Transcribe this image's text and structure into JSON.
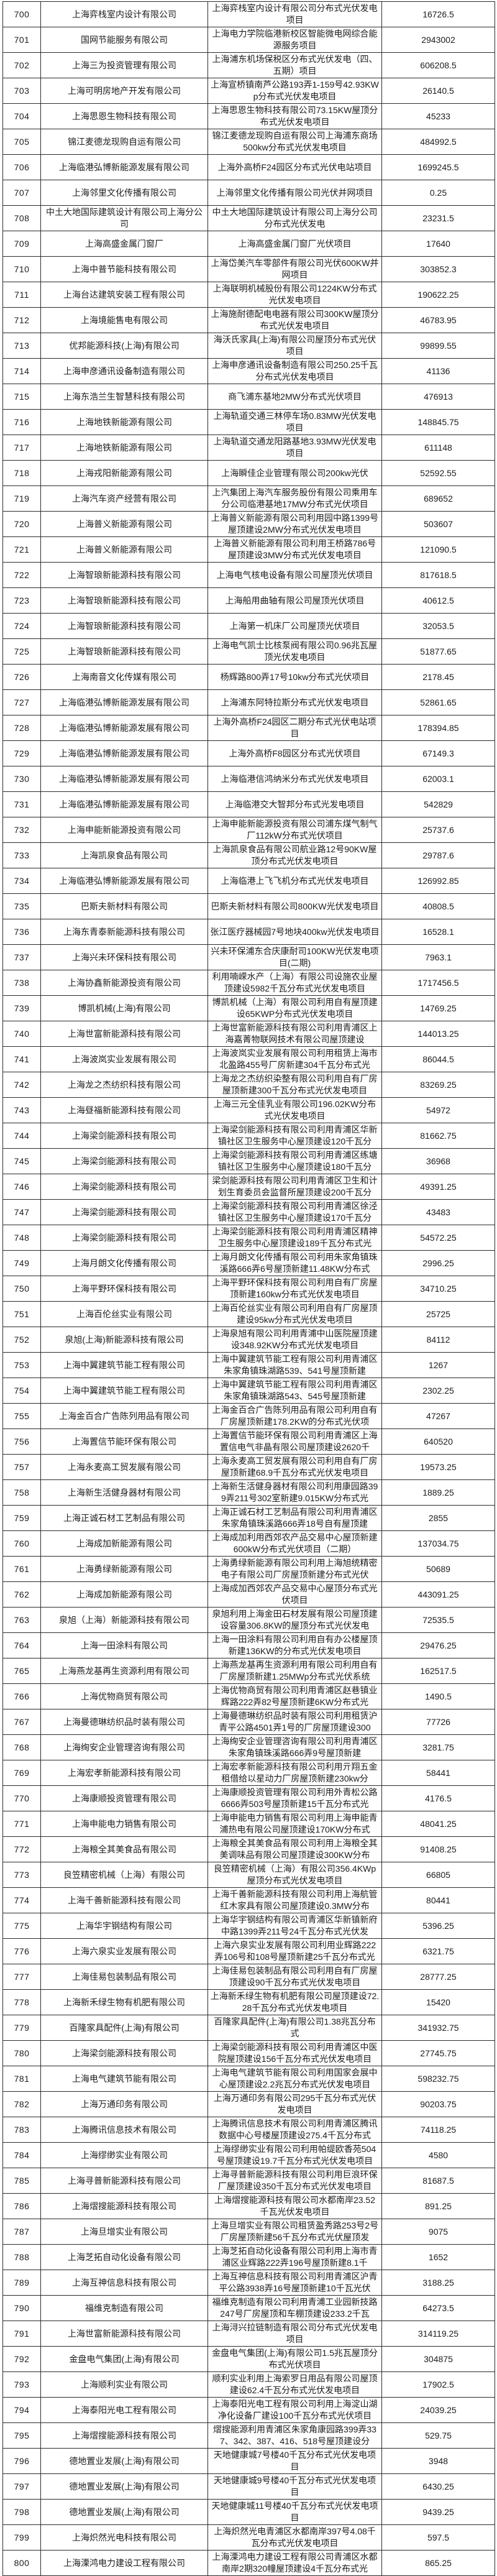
{
  "table": {
    "description": "分布式光伏发电项目补贴清单（第700-800行）",
    "rows": [
      {
        "no": "700",
        "company": "上海弈栈室内设计有限公司",
        "project": "上海弈栈室内设计有限公司分布式光伏发电项目",
        "value": "16726.5"
      },
      {
        "no": "701",
        "company": "国网节能服务有限公司",
        "project": "上海电力学院临港新校区智能微电网综合能源服务项目",
        "value": "2943002"
      },
      {
        "no": "702",
        "company": "上海三为投资管理有限公司",
        "project": "上海浦东机场保税区分布式光伏发电（四、五期）项目",
        "value": "606208.5"
      },
      {
        "no": "703",
        "company": "上海可明房地产开发有限公司",
        "project": "上海宣桥镇南芦公路193弄1-159号42.93KWp分布式光伏发电项目",
        "value": "26140.5"
      },
      {
        "no": "704",
        "company": "上海思恩生物科技有限公司",
        "project": "上海思恩生物科技有限公司73.15KW屋顶分布式光伏发电项目",
        "value": "45233"
      },
      {
        "no": "705",
        "company": "锦江麦德龙现购自运有限公司",
        "project": "锦江麦德龙现购自运有限公司上海浦东商场500kw分布式光伏发电项目",
        "value": "484992.5"
      },
      {
        "no": "706",
        "company": "上海临港弘博新能源发展有限公司",
        "project": "上海外高桥F24园区分布式光伏电站项目",
        "value": "1699245.5"
      },
      {
        "no": "707",
        "company": "上海邻里文化传播有限公司",
        "project": "上海邻里文化传播有限公司光伏并网项目",
        "value": "0.25"
      },
      {
        "no": "708",
        "company": "中土大地国际建筑设计有限公司上海分公司",
        "project": "中土大地国际建筑设计有限公司上海分公司分布式光伏发电",
        "value": "23231.5"
      },
      {
        "no": "709",
        "company": "上海高盛金属门窗厂",
        "project": "上海高盛金属门窗厂光伏项目",
        "value": "17640"
      },
      {
        "no": "710",
        "company": "上海中普节能科技有限公司",
        "project": "上海岱美汽车零部件有限公司光伏600KW并网项目",
        "value": "303852.3"
      },
      {
        "no": "711",
        "company": "上海台达建筑安装工程有限公司",
        "project": "上海联明机械股份有限公司1224KW分布式光伏发电项目",
        "value": "190622.25"
      },
      {
        "no": "712",
        "company": "上海境能售电有限公司",
        "project": "上海施耐德配电电器有限公司300KW屋顶分布式光伏发电项目",
        "value": "46783.95"
      },
      {
        "no": "713",
        "company": "优邦能源科技(上海)有限公司",
        "project": "海沃氏家具(上海)有限公司屋顶分布式光伏项目",
        "value": "99899.55"
      },
      {
        "no": "714",
        "company": "上海申彦通讯设备制造有限公司",
        "project": "上海申彦通讯设备制造有限公司250.25千瓦分布式光伏发电项目",
        "value": "41136"
      },
      {
        "no": "715",
        "company": "上海东浩兰生智慧科技有限公司",
        "project": "商飞浦东基地2MW分布式光伏项目",
        "value": "476913"
      },
      {
        "no": "716",
        "company": "上海地铁新能源有限公司",
        "project": "上海轨道交通三林停车场0.83MW光伏发电项目",
        "value": "148845.75"
      },
      {
        "no": "717",
        "company": "上海地铁新能源有限公司",
        "project": "上海轨道交通龙阳路基地3.93MW光伏发电项目",
        "value": "611148"
      },
      {
        "no": "718",
        "company": "上海戎阳新能源有限公司",
        "project": "上海瞬佳企业管理有限公司200kw光伏",
        "value": "52592.55"
      },
      {
        "no": "719",
        "company": "上海汽车资产经营有限公司",
        "project": "上汽集团上海汽车服务股份有限公司乘用车分公司临港基地17MW分布式光伏项目",
        "value": "689652"
      },
      {
        "no": "720",
        "company": "上海普义新能源有限公司",
        "project": "上海普义新能源有限公司利用园中路1399号屋顶建设2MW分布式光伏发电项目",
        "value": "503607"
      },
      {
        "no": "721",
        "company": "上海普义新能源有限公司",
        "project": "上海普义新能源有限公司利用王桥路786号屋顶建设3MW分布式光伏发电项目",
        "value": "121090.5"
      },
      {
        "no": "722",
        "company": "上海智琅新能源科技有限公司",
        "project": "上海电气核电设备有限公司屋顶光伏项目",
        "value": "817618.5"
      },
      {
        "no": "723",
        "company": "上海智琅新能源科技有限公司",
        "project": "上海船用曲轴有限公司屋顶光伏项目",
        "value": "40612.5"
      },
      {
        "no": "724",
        "company": "上海智琅新能源科技有限公司",
        "project": "上海第一机床厂公司屋顶光伏项目",
        "value": "32053.5"
      },
      {
        "no": "725",
        "company": "上海智琅新能源科技有限公司",
        "project": "上海电气凯士比核泵阀有限公司0.96兆瓦屋顶光伏发电项目",
        "value": "51877.65"
      },
      {
        "no": "726",
        "company": "上海南音文化传媒有限公司",
        "project": "杨辉路800弄17号10kw分布式光伏项目",
        "value": "2178.45"
      },
      {
        "no": "727",
        "company": "上海临港弘博新能源发展有限公司",
        "project": "上海浦东阿特拉斯分布式光伏发电项目",
        "value": "52861.65"
      },
      {
        "no": "728",
        "company": "上海临港弘博新能源发展有限公司",
        "project": "上海外高桥F24园区二期分布式光伏电站项目",
        "value": "178394.85"
      },
      {
        "no": "729",
        "company": "上海临港弘博新能源发展有限公司",
        "project": "上海外高桥F8园区分布式光伏项目",
        "value": "67149.3"
      },
      {
        "no": "730",
        "company": "上海临港弘博新能源发展有限公司",
        "project": "上海临港信鸿纳米分布式光伏发电项目",
        "value": "62003.1"
      },
      {
        "no": "731",
        "company": "上海临港弘博新能源发展有限公司",
        "project": "上海临港交大智邦分布式光发电项目",
        "value": "542829"
      },
      {
        "no": "732",
        "company": "上海申能新能源投资有限公司",
        "project": "上海申能新能源投资有限公司浦东煤气制气厂112kW分布式光伏项目",
        "value": "25737.6"
      },
      {
        "no": "733",
        "company": "上海凯泉食品有限公司",
        "project": "上海凯泉食品有限公司航业路12号90KW屋顶分布式光伏发电项目",
        "value": "29787.6"
      },
      {
        "no": "734",
        "company": "上海临港弘博新能源发展有限公司",
        "project": "上海临港上飞飞机分布式光伏发电项目",
        "value": "126992.85"
      },
      {
        "no": "735",
        "company": "巴斯夫新材料有限公司",
        "project": "巴斯夫新材料有限公司800KW光伏发电项目",
        "value": "40808.5"
      },
      {
        "no": "736",
        "company": "上海东青泰新能源科技有限公司",
        "project": "张江医疗器械园7号地块400kw光伏发电项目",
        "value": "16528.1"
      },
      {
        "no": "737",
        "company": "上海兴未环保科技有限公司",
        "project": "兴未环保浦东合庆康耐司100KW光伏发电项目(二期)",
        "value": "7963.1"
      },
      {
        "no": "738",
        "company": "上海协鑫新能源投资有限公司",
        "project": "利用喃嵘水产（上海）有限公司设施农业屋顶建设5982千瓦分布式光伏发电项目",
        "value": "1717456.5"
      },
      {
        "no": "739",
        "company": "博凯机械(上海)有限公司",
        "project": "博凯机械（上海）有限公司利用自有屋顶建设65KWP分布式光伏发电项目",
        "value": "14769.25"
      },
      {
        "no": "740",
        "company": "上海世富新能源科技有限公司",
        "project": "上海世富新能源科技有限公司利用青浦区上海嘉菁物联网技术有限公司屋顶建设",
        "value": "144013.25"
      },
      {
        "no": "741",
        "company": "上海波岚实业发展有限公司",
        "project": "上海波岚实业发展有限公司利用租赁上海市北盈路455号厂房新建304千瓦分布式光",
        "value": "86044.5"
      },
      {
        "no": "742",
        "company": "上海龙之杰纺织科技有限公司",
        "project": "上海龙之杰纺织染整有限公司利用自有厂房屋顶新建300千瓦分布式光伏发电项目",
        "value": "83269.25"
      },
      {
        "no": "743",
        "company": "上海昼福新能源科技有限公司",
        "project": "上海三元全佳乳业有限公司196.02KW分布式光伏发电项目",
        "value": "54972"
      },
      {
        "no": "744",
        "company": "上海梁剑能源科技有限公司",
        "project": "上海梁剑能源科技有限公司利用青浦区华新镇社区卫生服务中心屋顶建设120千瓦分",
        "value": "81662.75"
      },
      {
        "no": "745",
        "company": "上海梁剑能源科技有限公司",
        "project": "上海梁剑能源科技有限公司利用青浦区练塘镇社区卫生服务中心屋顶建设180千瓦分",
        "value": "36968"
      },
      {
        "no": "746",
        "company": "上海梁剑能源科技有限公司",
        "project": "梁剑能源科技有限公司利用青浦区卫生和计划生育委员会监督所屋顶建设200千瓦分",
        "value": "49391.25"
      },
      {
        "no": "747",
        "company": "上海梁剑能源科技有限公司",
        "project": "上海梁剑能源科技有限公司利用青浦区徐泾镇社区卫生服务中心屋顶建设170千瓦分",
        "value": "43483"
      },
      {
        "no": "748",
        "company": "上海梁剑能源科技有限公司",
        "project": "上海梁剑能源科技有限公司利用青浦区精神卫生服务中心屋顶建设189千瓦分布式光",
        "value": "54572.25"
      },
      {
        "no": "749",
        "company": "上海月朗文化传播有限公司",
        "project": "上海月朗文化传播有限公司利用朱家角镇珠溪路666弄6号屋顶新建11.48KW分布式",
        "value": "2996.25"
      },
      {
        "no": "750",
        "company": "上海平野环保科技有限公司",
        "project": "上海平野环保科技有限公司利用自有厂房屋顶新建160kw分布式光伏发电项目",
        "value": "34710.25"
      },
      {
        "no": "751",
        "company": "上海百伦丝实业有限公司",
        "project": "上海百伦丝实业有限公司利用自有厂房屋顶建设95kw分布式光伏发电项目",
        "value": "25725"
      },
      {
        "no": "752",
        "company": "泉旭(上海)新能源科技有限公司",
        "project": "上海泉旭有限公司利用青浦中山医院屋顶建设348.92KW分布式光伏发电项目",
        "value": "84112"
      },
      {
        "no": "753",
        "company": "上海中翼建筑节能工程有限公司",
        "project": "上海中翼建筑节能工程有限公司利用青浦区朱家角镇珠湖路539、541号屋顶新建",
        "value": "1267"
      },
      {
        "no": "754",
        "company": "上海中翼建筑节能工程有限公司",
        "project": "上海中翼建筑节能工程有限公司利用青浦区朱家角镇珠湖路543、545号屋顶新建",
        "value": "2302.25"
      },
      {
        "no": "755",
        "company": "上海金百合广告陈列用品有限公司",
        "project": "上海金百合广告陈列用品有限公司利用自有厂房屋顶新建178.2KW的分布式光伏项",
        "value": "47267"
      },
      {
        "no": "756",
        "company": "上海置信节能环保有限公司",
        "project": "上海置信节能环保有限公司利用青浦区上海置信电气非晶有限公司屋顶建设2620千",
        "value": "640520"
      },
      {
        "no": "757",
        "company": "上海永麦高工贸发展有限公司",
        "project": "上海永麦高工贸发展有限公司利用自有厂房屋顶新建68.9千瓦分布式光伏发电项目",
        "value": "19573.25"
      },
      {
        "no": "758",
        "company": "上海新生活健身器材有限公司",
        "project": "上海新生活健身器材有限公司利用康园路399弄211号302室新建9.015KW分布式光",
        "value": "1889.25"
      },
      {
        "no": "759",
        "company": "上海正诚石材工艺制品有限公司",
        "project": "上海正诚石材工艺制品有限公司利用青浦区朱家角镇珠溪路666弄18号自有屋顶建",
        "value": "2855"
      },
      {
        "no": "760",
        "company": "上海成加新能源有限公司",
        "project": "上海成加利用西郊农产品交易中心屋顶新建600kW分布式光伏项目（二期）",
        "value": "137034.75"
      },
      {
        "no": "761",
        "company": "上海勇绿新能源有限公司",
        "project": "上海勇绿新能源有限公司利用上海旭统精密电子有限公司厂房屋顶新建分布式光伏",
        "value": "50689"
      },
      {
        "no": "762",
        "company": "上海成加新能源有限公司",
        "project": "上海成加西郊农产品交易中心屋顶分布式光伏项目",
        "value": "443091.25"
      },
      {
        "no": "763",
        "company": "泉旭（上海）新能源科技有限公司",
        "project": "泉旭利用上海金田石材发展有限公司屋顶建设容量306.8KW的屋顶分布式光伏发电",
        "value": "72535.5"
      },
      {
        "no": "764",
        "company": "上海一田涂料有限公司",
        "project": "上海一田涂料有限公司利用自有办公楼屋顶新建136KW的分布式光伏发电项目",
        "value": "29476.25"
      },
      {
        "no": "765",
        "company": "上海燕龙基再生资源利用有限公司",
        "project": "上海燕龙基再生资源利用有限公司利用自有厂房屋顶新建1.25MWp分布式光伏系统",
        "value": "162517.5"
      },
      {
        "no": "766",
        "company": "上海优物商贸有限公司",
        "project": "上海优物商贸有限公司利用青浦区赵巷镇业辉路222弄82号屋顶新建6KW分布式光",
        "value": "1490.5"
      },
      {
        "no": "767",
        "company": "上海曼德琳纺织品时装有限公司",
        "project": "上海曼德琳纺织品时装有限公司利用租赁沪青平公路4501弄1号的厂房屋顶建设300",
        "value": "77726"
      },
      {
        "no": "768",
        "company": "上海绚安企业管理咨询有限公司",
        "project": "上海绚安企业管理咨询有限公司利用青浦区朱家角镇珠溪路666弄9号屋顶新建",
        "value": "3281.75"
      },
      {
        "no": "769",
        "company": "上海宏孝新能源科技有限公司",
        "project": "上海宏孝新能源科技有限公司利用亓翔五金租借给以星动力厂房屋顶新建230kw分",
        "value": "58441"
      },
      {
        "no": "770",
        "company": "上海康顺投资管理有限公司",
        "project": "上海康顺投资管理有限公司利用外青松公路6666弄503号屋顶新建15千瓦分布式光",
        "value": "4176.5"
      },
      {
        "no": "771",
        "company": "上海申能电力销售有限公司",
        "project": "上海申能电力销售有限公司利用上海申能青浦热电有限公司屋顶建设170KW分布式",
        "value": "48041.25"
      },
      {
        "no": "772",
        "company": "上海粮全其美食品有限公司",
        "project": "上海粮全其美食品有限公司利用上海粮全其美调味品有限公司屋顶建设300KW分布",
        "value": "91408.25"
      },
      {
        "no": "773",
        "company": "良笠精密机械（上海）有限公司",
        "project": "良笠精密机械（上海）有限公司356.4KWp屋顶分布式光伏发电项目",
        "value": "66805"
      },
      {
        "no": "774",
        "company": "上海千善新能源科技有限公司",
        "project": "上海千善新能源科技有限公司利用上海航管红木家具有限公司屋顶建设0.3MW分布",
        "value": "80441"
      },
      {
        "no": "775",
        "company": "上海华宇钢结构有限公司",
        "project": "上海华宇钢结构有限公司青浦区华新镇新府中路1399弄211号24千瓦分布式光伏发",
        "value": "5396.25"
      },
      {
        "no": "776",
        "company": "上海六泉实业发展有限公司",
        "project": "上海六泉实业发展有限公司利用业辉路222弄106号和108号屋顶新建25千瓦分布式光",
        "value": "6321.75"
      },
      {
        "no": "777",
        "company": "上海佳易包装制品有限公司",
        "project": "上海佳易包装制品有限公司利用自有厂房屋顶建设90千瓦分布式光伏发电项目",
        "value": "28777.25"
      },
      {
        "no": "778",
        "company": "上海新禾绿生物有机肥有限公司",
        "project": "上海新禾绿生物有机肥有限公司屋顶建设72.28千瓦分布式光伏发电项目",
        "value": "15420"
      },
      {
        "no": "779",
        "company": "百隆家具配件(上海)有限公司",
        "project": "百隆家具配件(上海)有限公司1.38兆瓦分布式",
        "value": "341932.75"
      },
      {
        "no": "780",
        "company": "上海梁剑能源科技有限公司",
        "project": "上海梁剑能源科技有限公司利用青浦区中医院屋顶建设156千瓦分布式光伏发电项目",
        "value": "27745.75"
      },
      {
        "no": "781",
        "company": "上海电气建筑节能有限公司",
        "project": "上海电气建筑节能有限公司利用国家会展中心屋顶建设2.2兆瓦分布式光伏发电项目",
        "value": "598232.75"
      },
      {
        "no": "782",
        "company": "上海万通印务有限公司",
        "project": "上海万通印务有限公司295千瓦分布式光伏发电项目",
        "value": "90203.75"
      },
      {
        "no": "783",
        "company": "上海腾讯信息技术有限公司",
        "project": "上海腾讯信息技术有限公司利用青浦区腾讯数据中心号楼屋顶建设275.4千瓦分布式",
        "value": "74118.25"
      },
      {
        "no": "784",
        "company": "上海缪缈实业有限公司",
        "project": "上海缪缈实业有限公司利用帕缇欧香苑504号屋顶建设19.7千瓦分布式光伏发电项目",
        "value": "4580"
      },
      {
        "no": "785",
        "company": "上海寻普新能源科技有限公司",
        "project": "上海寻普新能源科技有限公司利用巨浪环保厂屋顶建设350千瓦分布式光伏发电项目",
        "value": "81687.5"
      },
      {
        "no": "786",
        "company": "上海熠搜能源科技有限公司",
        "project": "上海熠搜能源科技有限公司水都南岸23.52千瓦光伏发电项目",
        "value": "891.25"
      },
      {
        "no": "787",
        "company": "上海旦增实业有限公司",
        "project": "上海旦增实业有限公司租赁盈秀路253号2号厂房屋顶新建56千瓦分布式光伏屋顶发",
        "value": "9075"
      },
      {
        "no": "788",
        "company": "上海芝拓自动化设备有限公司",
        "project": "上海芝拓自动化设备有限公司利用上海市青浦区业辉路222弄196号屋顶新建8.1千",
        "value": "1652"
      },
      {
        "no": "789",
        "company": "上海互神信息科技有限公司",
        "project": "上海互神信息科技有限公司利用青浦区沪青平公路3938弄16号屋顶新建10千瓦光伏",
        "value": "3188.25"
      },
      {
        "no": "790",
        "company": "福维克制造有限公司",
        "project": "福维克制造有限公司利用青浦工业园新技路247号厂房屋顶和车棚顶建设233.2千瓦",
        "value": "64273.5"
      },
      {
        "no": "791",
        "company": "上海世富新能源科技有限公司",
        "project": "上海浔兴拉链制造有限公司分布式光伏发电项目",
        "value": "314119.25"
      },
      {
        "no": "792",
        "company": "金盘电气集团(上海)有限公司",
        "project": "金盘电气集团(上海)有限公司1.5兆瓦屋顶分布式光伏项目",
        "value": "304875"
      },
      {
        "no": "793",
        "company": "上海顺利实业有限公司",
        "project": "顺利实业利用上海索罗日用品有限公司屋顶建设62.4千瓦分布式光伏发电项目",
        "value": "17902.5"
      },
      {
        "no": "794",
        "company": "上海泰阳光电工程有限公司",
        "project": "上海泰阳光电工程有限公司利用上海淀山湖净化设备厂建设100千瓦分布式光伏项目",
        "value": "24039.25"
      },
      {
        "no": "795",
        "company": "上海熠搜能源科技有限公司",
        "project": "熠搜能源利用青浦区朱家角康园路399弄337、342、387、416、518号屋顶建设分",
        "value": "529.75"
      },
      {
        "no": "796",
        "company": "德地置业发展(上海)有限公司",
        "project": "天地健康城7号楼40千瓦分布式光伏发电项目",
        "value": "3948"
      },
      {
        "no": "797",
        "company": "德地置业发展(上海)有限公司",
        "project": "天地健康城9号楼40千瓦分布式光伏发电项目",
        "value": "6430.25"
      },
      {
        "no": "798",
        "company": "德地置业发展(上海)有限公司",
        "project": "天地健康城11号楼40千瓦分布式光伏发电项目",
        "value": "9439.25"
      },
      {
        "no": "799",
        "company": "上海炽然光电科技有限公司",
        "project": "上海炽然光电青浦区水都南岸397号4.08千瓦分布式光伏发电项目",
        "value": "597.5"
      },
      {
        "no": "800",
        "company": "上海溧鸿电力建设工程有限公司",
        "project": "上海溧鸿电力建设工程有限公司青浦区水都南岸2期320幢屋顶建设4千瓦分布式光",
        "value": "865.25"
      }
    ]
  }
}
